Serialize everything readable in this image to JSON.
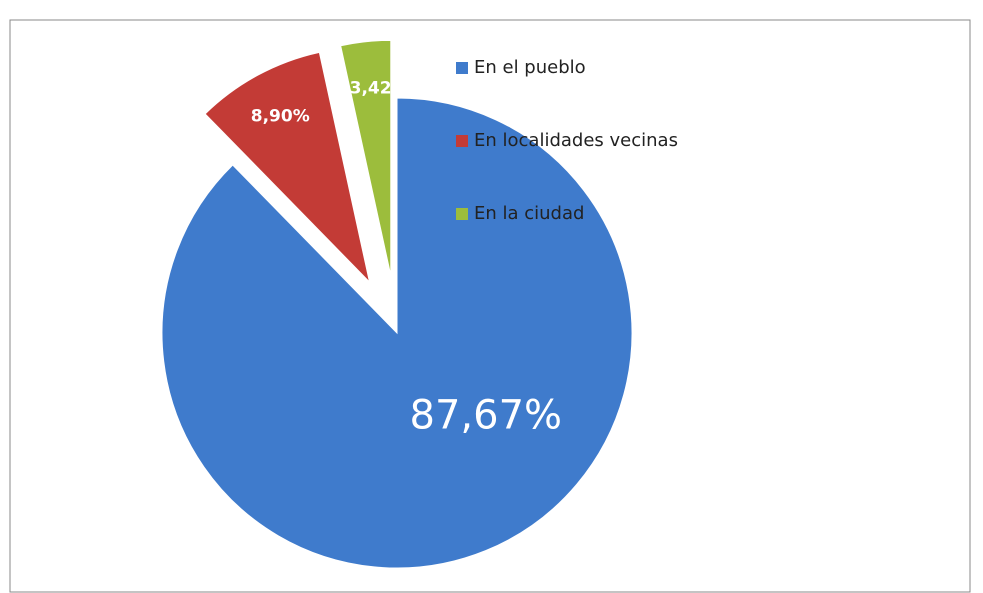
{
  "chart_data": {
    "type": "pie",
    "categories": [
      "En el pueblo",
      "En localidades vecinas",
      "En la ciudad"
    ],
    "values": [
      87.67,
      8.9,
      3.42
    ],
    "value_labels": [
      "87,67%",
      "8,90%",
      "3,42"
    ],
    "colors": [
      "#3f7bcc",
      "#c33b36",
      "#9cbd3c"
    ],
    "legend": "right"
  }
}
